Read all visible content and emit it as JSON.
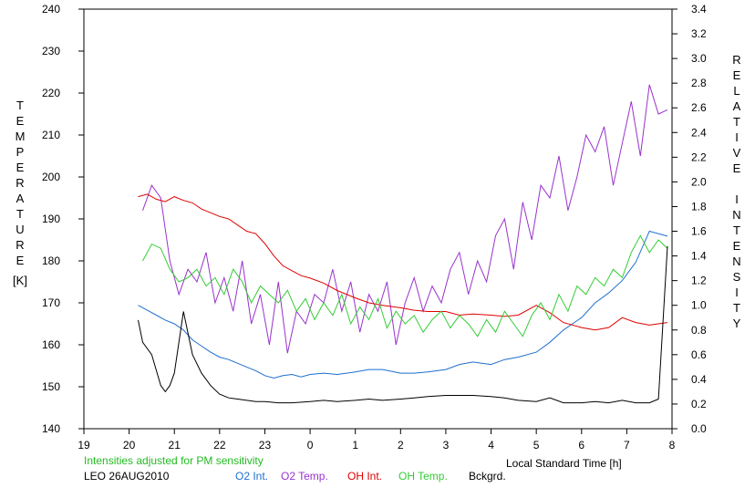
{
  "chart_data": {
    "type": "line",
    "title": "",
    "xlabel": "Local Standard Time [h]",
    "ylabel_left": "TEMPERATURE",
    "ylabel_left_unit": "[K]",
    "ylabel_right": "RELATIVE INTENSITY",
    "x_ticks": [
      "19",
      "20",
      "21",
      "22",
      "23",
      "0",
      "1",
      "2",
      "3",
      "4",
      "5",
      "6",
      "7",
      "8"
    ],
    "x_range": [
      19,
      32
    ],
    "ylim_left": [
      140,
      240
    ],
    "y_ticks_left": [
      "140",
      "150",
      "160",
      "170",
      "180",
      "190",
      "200",
      "210",
      "220",
      "230",
      "240"
    ],
    "ylim_right": [
      0,
      3.4
    ],
    "y_ticks_right": [
      "0.0",
      "0.2",
      "0.4",
      "0.6",
      "0.8",
      "1.0",
      "1.2",
      "1.4",
      "1.6",
      "1.8",
      "2.0",
      "2.2",
      "2.4",
      "2.6",
      "2.8",
      "3.0",
      "3.2",
      "3.4"
    ],
    "note": "Intensities adjusted for PM sensitivity",
    "station": "LEO 26AUG2010",
    "grid": false,
    "legend_position": "bottom",
    "series": [
      {
        "name": "O2 Int.",
        "axis": "right",
        "color": "#1f6fd0",
        "x": [
          20.2,
          20.4,
          20.6,
          20.8,
          21.0,
          21.2,
          21.4,
          21.6,
          21.8,
          22.0,
          22.2,
          22.4,
          22.6,
          22.8,
          23.0,
          23.2,
          23.4,
          23.6,
          23.8,
          24.0,
          24.3,
          24.6,
          25.0,
          25.3,
          25.6,
          26.0,
          26.3,
          26.6,
          27.0,
          27.3,
          27.6,
          28.0,
          28.3,
          28.6,
          29.0,
          29.3,
          29.6,
          30.0,
          30.3,
          30.6,
          30.9,
          31.2,
          31.5,
          31.9
        ],
        "values": [
          1.0,
          0.96,
          0.92,
          0.88,
          0.85,
          0.8,
          0.72,
          0.67,
          0.62,
          0.58,
          0.56,
          0.53,
          0.5,
          0.47,
          0.43,
          0.41,
          0.43,
          0.44,
          0.42,
          0.44,
          0.45,
          0.44,
          0.46,
          0.48,
          0.48,
          0.45,
          0.45,
          0.46,
          0.48,
          0.52,
          0.54,
          0.52,
          0.56,
          0.58,
          0.62,
          0.7,
          0.8,
          0.9,
          1.02,
          1.1,
          1.2,
          1.35,
          1.6,
          1.56
        ]
      },
      {
        "name": "O2 Temp.",
        "axis": "left",
        "color": "#9933cc",
        "x": [
          20.3,
          20.5,
          20.7,
          20.9,
          21.1,
          21.3,
          21.5,
          21.7,
          21.9,
          22.1,
          22.3,
          22.5,
          22.7,
          22.9,
          23.1,
          23.3,
          23.5,
          23.7,
          23.9,
          24.1,
          24.3,
          24.5,
          24.7,
          24.9,
          25.1,
          25.3,
          25.5,
          25.7,
          25.9,
          26.1,
          26.3,
          26.5,
          26.7,
          26.9,
          27.1,
          27.3,
          27.5,
          27.7,
          27.9,
          28.1,
          28.3,
          28.5,
          28.7,
          28.9,
          29.1,
          29.3,
          29.5,
          29.7,
          29.9,
          30.1,
          30.3,
          30.5,
          30.7,
          30.9,
          31.1,
          31.3,
          31.5,
          31.7,
          31.9
        ],
        "values": [
          192,
          198,
          195,
          180,
          172,
          178,
          175,
          182,
          170,
          176,
          168,
          180,
          165,
          172,
          160,
          175,
          158,
          168,
          165,
          172,
          170,
          178,
          168,
          175,
          163,
          172,
          168,
          175,
          160,
          170,
          176,
          168,
          174,
          170,
          178,
          182,
          172,
          180,
          175,
          186,
          190,
          178,
          194,
          185,
          198,
          195,
          205,
          192,
          200,
          210,
          206,
          212,
          198,
          208,
          218,
          205,
          222,
          215,
          216
        ]
      },
      {
        "name": "OH Int.",
        "axis": "right",
        "color": "#e00000",
        "x": [
          20.2,
          20.4,
          20.6,
          20.8,
          21.0,
          21.2,
          21.4,
          21.6,
          21.8,
          22.0,
          22.2,
          22.4,
          22.6,
          22.8,
          23.0,
          23.2,
          23.4,
          23.6,
          23.8,
          24.0,
          24.3,
          24.6,
          25.0,
          25.3,
          25.6,
          26.0,
          26.3,
          26.6,
          27.0,
          27.3,
          27.6,
          28.0,
          28.3,
          28.6,
          29.0,
          29.3,
          29.6,
          30.0,
          30.3,
          30.6,
          30.9,
          31.2,
          31.5,
          31.9
        ],
        "values": [
          1.88,
          1.9,
          1.86,
          1.84,
          1.88,
          1.85,
          1.83,
          1.78,
          1.75,
          1.72,
          1.7,
          1.65,
          1.6,
          1.58,
          1.5,
          1.4,
          1.32,
          1.28,
          1.24,
          1.22,
          1.18,
          1.12,
          1.06,
          1.02,
          1.0,
          0.98,
          0.96,
          0.95,
          0.95,
          0.92,
          0.93,
          0.92,
          0.91,
          0.92,
          1.0,
          0.94,
          0.86,
          0.82,
          0.8,
          0.82,
          0.9,
          0.86,
          0.84,
          0.86
        ]
      },
      {
        "name": "OH Temp.",
        "axis": "left",
        "color": "#33cc33",
        "x": [
          20.3,
          20.5,
          20.7,
          20.9,
          21.1,
          21.3,
          21.5,
          21.7,
          21.9,
          22.1,
          22.3,
          22.5,
          22.7,
          22.9,
          23.1,
          23.3,
          23.5,
          23.7,
          23.9,
          24.1,
          24.3,
          24.5,
          24.7,
          24.9,
          25.1,
          25.3,
          25.5,
          25.7,
          25.9,
          26.1,
          26.3,
          26.5,
          26.7,
          26.9,
          27.1,
          27.3,
          27.5,
          27.7,
          27.9,
          28.1,
          28.3,
          28.5,
          28.7,
          28.9,
          29.1,
          29.3,
          29.5,
          29.7,
          29.9,
          30.1,
          30.3,
          30.5,
          30.7,
          30.9,
          31.1,
          31.3,
          31.5,
          31.7,
          31.9
        ],
        "values": [
          180,
          184,
          183,
          178,
          175,
          176,
          178,
          174,
          176,
          172,
          178,
          175,
          170,
          174,
          172,
          170,
          173,
          168,
          171,
          166,
          170,
          167,
          172,
          165,
          169,
          166,
          171,
          164,
          168,
          165,
          167,
          163,
          166,
          168,
          164,
          167,
          165,
          162,
          166,
          163,
          168,
          165,
          162,
          167,
          170,
          166,
          172,
          168,
          174,
          172,
          176,
          174,
          178,
          176,
          182,
          186,
          182,
          185,
          183
        ]
      },
      {
        "name": "Bckgrd.",
        "axis": "right",
        "color": "#000000",
        "x": [
          20.2,
          20.3,
          20.5,
          20.7,
          20.8,
          20.9,
          21.0,
          21.2,
          21.4,
          21.6,
          21.8,
          22.0,
          22.2,
          22.4,
          22.6,
          22.8,
          23.0,
          23.3,
          23.6,
          24.0,
          24.3,
          24.6,
          25.0,
          25.3,
          25.6,
          26.0,
          26.3,
          26.6,
          27.0,
          27.3,
          27.6,
          28.0,
          28.3,
          28.6,
          29.0,
          29.3,
          29.6,
          30.0,
          30.3,
          30.6,
          30.9,
          31.2,
          31.5,
          31.7,
          31.9
        ],
        "values": [
          0.88,
          0.7,
          0.6,
          0.35,
          0.3,
          0.35,
          0.45,
          0.95,
          0.6,
          0.45,
          0.35,
          0.28,
          0.25,
          0.24,
          0.23,
          0.22,
          0.22,
          0.21,
          0.21,
          0.22,
          0.23,
          0.22,
          0.23,
          0.24,
          0.23,
          0.24,
          0.25,
          0.26,
          0.27,
          0.27,
          0.27,
          0.26,
          0.25,
          0.23,
          0.22,
          0.25,
          0.21,
          0.21,
          0.22,
          0.21,
          0.23,
          0.21,
          0.21,
          0.24,
          1.48
        ]
      }
    ]
  }
}
